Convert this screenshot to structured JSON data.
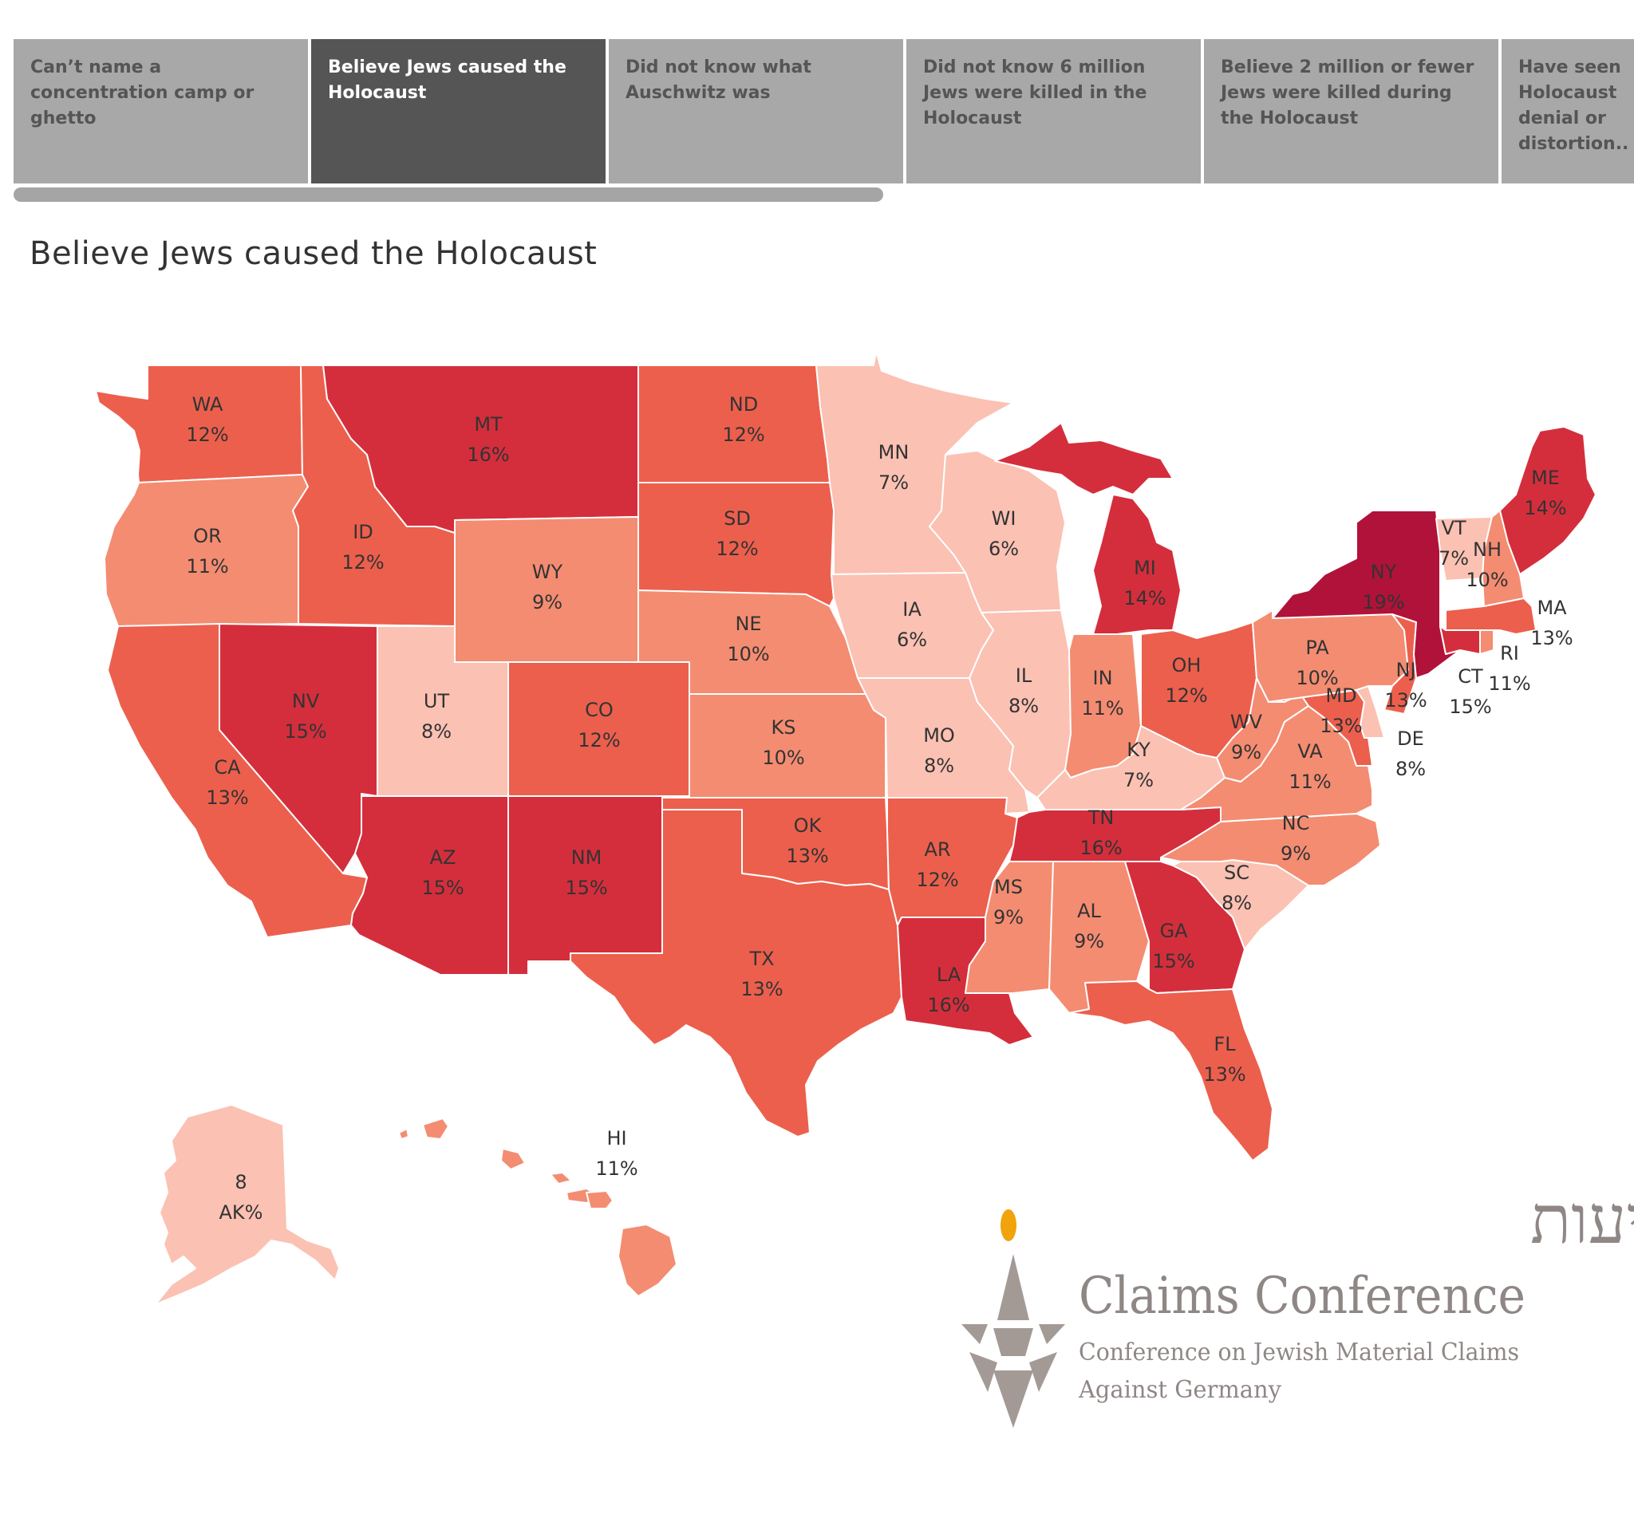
{
  "tabs": [
    {
      "label": "Can’t name a concentration camp or ghetto"
    },
    {
      "label": "Believe Jews caused the Holocaust"
    },
    {
      "label": "Did not know what Auschwitz was"
    },
    {
      "label": "Did not know 6 million Jews were killed in the Holocaust"
    },
    {
      "label": "Believe 2 million or fewer Jews were killed during the Holocaust"
    },
    {
      "label": "Have seen Holocaust denial or distortion.."
    }
  ],
  "active_tab_index": 1,
  "map": {
    "title": "Believe Jews caused the Holocaust",
    "color_scale": {
      "low": "#fbc1b3",
      "mid": "#f48c72",
      "high": "#d42e3c",
      "max": "#b0123a"
    }
  },
  "states": [
    {
      "code": "WA",
      "pct": "12%",
      "value": 12
    },
    {
      "code": "OR",
      "pct": "11%",
      "value": 11
    },
    {
      "code": "CA",
      "pct": "13%",
      "value": 13
    },
    {
      "code": "ID",
      "pct": "12%",
      "value": 12
    },
    {
      "code": "NV",
      "pct": "15%",
      "value": 15
    },
    {
      "code": "MT",
      "pct": "16%",
      "value": 16
    },
    {
      "code": "WY",
      "pct": "9%",
      "value": 9
    },
    {
      "code": "UT",
      "pct": "8%",
      "value": 8
    },
    {
      "code": "AZ",
      "pct": "15%",
      "value": 15
    },
    {
      "code": "CO",
      "pct": "12%",
      "value": 12
    },
    {
      "code": "NM",
      "pct": "15%",
      "value": 15
    },
    {
      "code": "ND",
      "pct": "12%",
      "value": 12
    },
    {
      "code": "SD",
      "pct": "12%",
      "value": 12
    },
    {
      "code": "NE",
      "pct": "10%",
      "value": 10
    },
    {
      "code": "KS",
      "pct": "10%",
      "value": 10
    },
    {
      "code": "OK",
      "pct": "13%",
      "value": 13
    },
    {
      "code": "TX",
      "pct": "13%",
      "value": 13
    },
    {
      "code": "MN",
      "pct": "7%",
      "value": 7
    },
    {
      "code": "IA",
      "pct": "6%",
      "value": 6
    },
    {
      "code": "MO",
      "pct": "8%",
      "value": 8
    },
    {
      "code": "AR",
      "pct": "12%",
      "value": 12
    },
    {
      "code": "LA",
      "pct": "16%",
      "value": 16
    },
    {
      "code": "WI",
      "pct": "6%",
      "value": 6
    },
    {
      "code": "IL",
      "pct": "8%",
      "value": 8
    },
    {
      "code": "MI",
      "pct": "14%",
      "value": 14
    },
    {
      "code": "IN",
      "pct": "11%",
      "value": 11
    },
    {
      "code": "OH",
      "pct": "12%",
      "value": 12
    },
    {
      "code": "KY",
      "pct": "7%",
      "value": 7
    },
    {
      "code": "TN",
      "pct": "16%",
      "value": 16
    },
    {
      "code": "MS",
      "pct": "9%",
      "value": 9
    },
    {
      "code": "AL",
      "pct": "9%",
      "value": 9
    },
    {
      "code": "GA",
      "pct": "15%",
      "value": 15
    },
    {
      "code": "FL",
      "pct": "13%",
      "value": 13
    },
    {
      "code": "SC",
      "pct": "8%",
      "value": 8
    },
    {
      "code": "NC",
      "pct": "9%",
      "value": 9
    },
    {
      "code": "VA",
      "pct": "11%",
      "value": 11
    },
    {
      "code": "WV",
      "pct": "9%",
      "value": 9
    },
    {
      "code": "PA",
      "pct": "10%",
      "value": 10
    },
    {
      "code": "NY",
      "pct": "19%",
      "value": 19
    },
    {
      "code": "VT",
      "pct": "7%",
      "value": 7
    },
    {
      "code": "NH",
      "pct": "10%",
      "value": 10
    },
    {
      "code": "ME",
      "pct": "14%",
      "value": 14
    },
    {
      "code": "MA",
      "pct": "13%",
      "value": 13
    },
    {
      "code": "RI",
      "pct": "11%",
      "value": 11
    },
    {
      "code": "CT",
      "pct": "15%",
      "value": 15
    },
    {
      "code": "NJ",
      "pct": "13%",
      "value": 13
    },
    {
      "code": "DE",
      "pct": "8%",
      "value": 8
    },
    {
      "code": "MD",
      "pct": "13%",
      "value": 13
    },
    {
      "code": "HI",
      "pct": "11%",
      "value": 11
    },
    {
      "code": "AK",
      "pct": "8",
      "value": 8
    }
  ],
  "ak_label": {
    "line1": "8",
    "line2": "AK%"
  },
  "logo": {
    "hebrew": "ועידת התביעות",
    "name": "Claims Conference",
    "sub1": "Conference on Jewish Material Claims",
    "sub2": "Against Germany",
    "flame_color": "#f0a30a",
    "star_color": "#a39a96"
  }
}
